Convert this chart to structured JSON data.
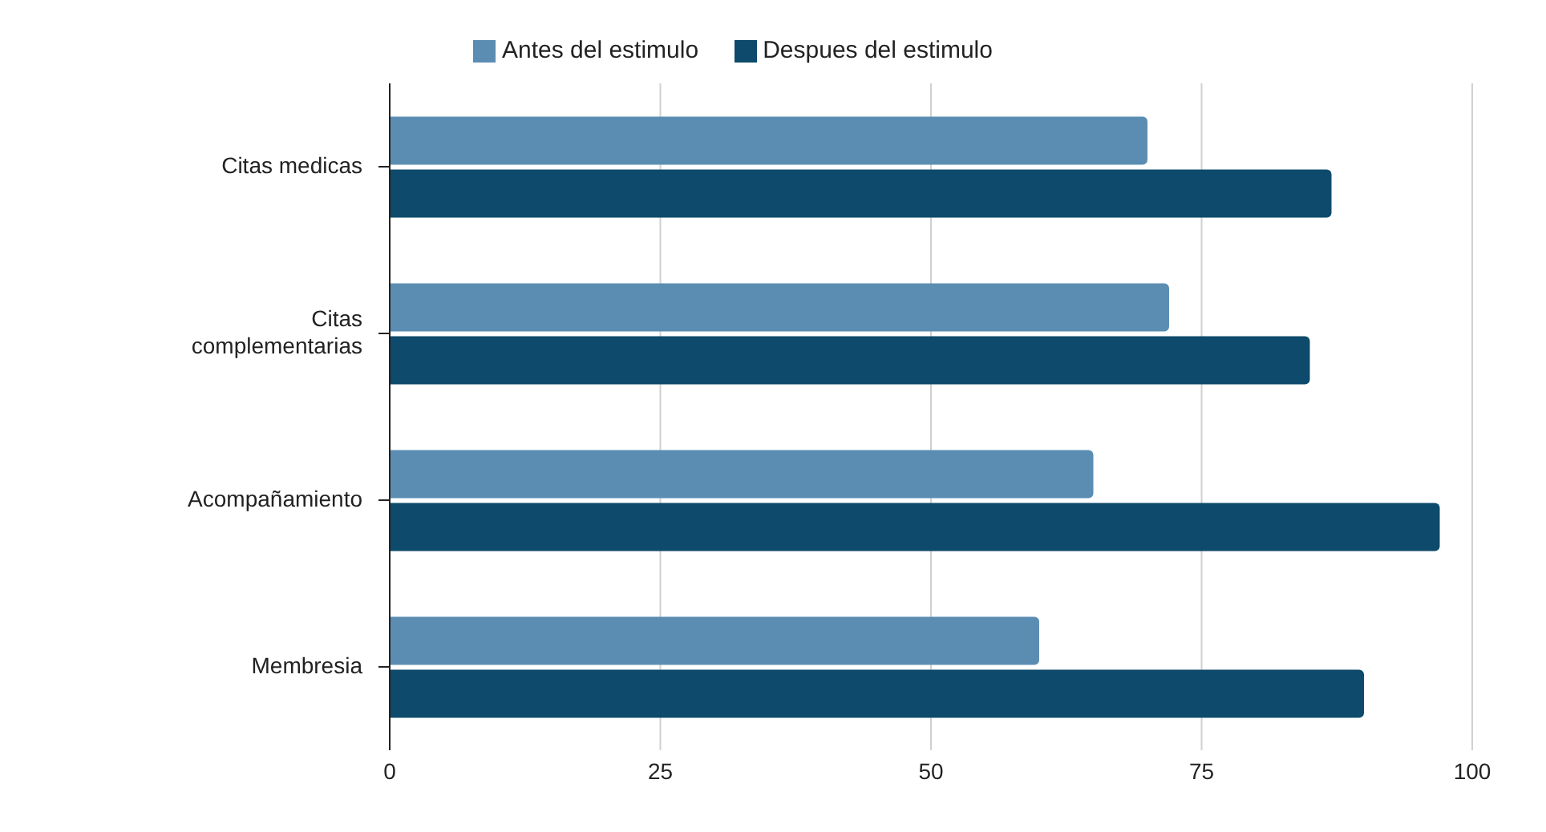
{
  "chart_data": {
    "type": "bar",
    "orientation": "horizontal",
    "categories": [
      "Citas medicas",
      "Citas complementarias",
      "Acompañamiento",
      "Membresia"
    ],
    "series": [
      {
        "name": "Antes del estimulo",
        "color": "#5b8db3",
        "values": [
          70,
          72,
          65,
          60
        ]
      },
      {
        "name": "Despues del estimulo",
        "color": "#0d4a6b",
        "values": [
          87,
          85,
          97,
          90
        ]
      }
    ],
    "xlim": [
      0,
      100
    ],
    "xticks": [
      0,
      25,
      50,
      75,
      100
    ],
    "grid": "x",
    "legend": "top"
  }
}
